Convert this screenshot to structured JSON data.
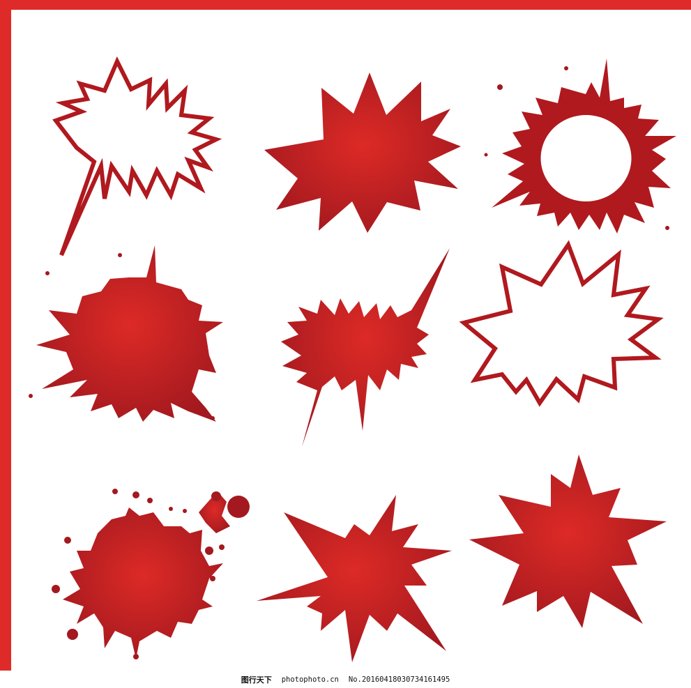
{
  "colors": {
    "frame": "#de2b2a",
    "fill_center": "#dd2a26",
    "fill_edge": "#a3191f",
    "outline": "#b0191e",
    "background": "#ffffff"
  },
  "shapes": [
    {
      "kind": "speech-burst-outline",
      "icon": "jagged-speech-bubble-outline-icon"
    },
    {
      "kind": "starburst-filled",
      "icon": "starburst-icon"
    },
    {
      "kind": "splash-ring",
      "icon": "splash-ring-icon"
    },
    {
      "kind": "splat-filled",
      "icon": "ink-splat-icon"
    },
    {
      "kind": "speech-burst-filled",
      "icon": "jagged-speech-bubble-icon"
    },
    {
      "kind": "starburst-outline",
      "icon": "starburst-outline-icon"
    },
    {
      "kind": "splat-droplets",
      "icon": "paint-splat-icon"
    },
    {
      "kind": "starburst-filled-irregular",
      "icon": "explosion-icon"
    },
    {
      "kind": "starburst-filled",
      "icon": "starburst-icon"
    }
  ],
  "watermark": {
    "brand": "图行天下",
    "site": "photophoto.cn",
    "id": "No.20160418030734161495"
  }
}
